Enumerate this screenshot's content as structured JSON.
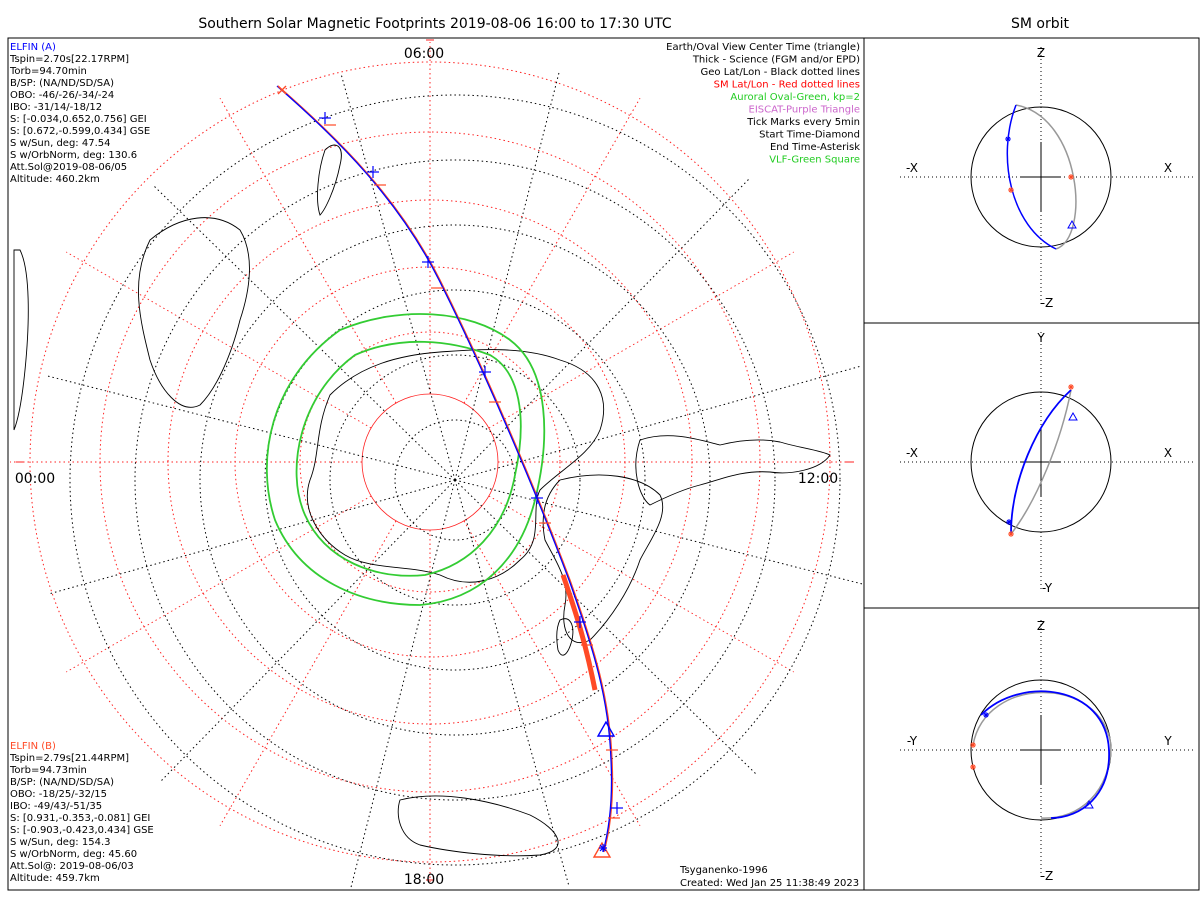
{
  "header": {
    "title": "Southern Solar Magnetic Footprints 2019-08-06 16:00 to 17:30 UTC",
    "side_title": "SM orbit"
  },
  "sat_a": {
    "name": "ELFIN (A)",
    "color": "#0000ff",
    "lines": [
      "Tspin=2.70s[22.17RPM]",
      "Torb=94.70min",
      "B/SP: (NA/ND/SD/SA)",
      "OBO: -46/-26/-34/-24",
      "IBO: -31/14/-18/12",
      "S: [-0.034,0.652,0.756] GEI",
      "S: [0.672,-0.599,0.434] GSE",
      "S w/Sun, deg: 47.54",
      "S w/OrbNorm, deg: 130.6",
      "Att.Sol@2019-08-06/05",
      "Altitude: 460.2km"
    ]
  },
  "sat_b": {
    "name": "ELFIN (B)",
    "color": "#ff4a26",
    "lines": [
      "Tspin=2.79s[21.44RPM]",
      "Torb=94.73min",
      "B/SP: (NA/ND/SD/SA)",
      "OBO: -18/25/-32/15",
      "IBO: -49/43/-51/35",
      "S: [0.931,-0.353,-0.081] GEI",
      "S: [-0.903,-0.423,0.434] GSE",
      "S w/Sun, deg: 154.3",
      "S w/OrbNorm, deg: 45.60",
      "Att.Sol@: 2019-08-06/03",
      "Altitude: 459.7km"
    ]
  },
  "legend": [
    {
      "text": "Earth/Oval View Center Time (triangle)",
      "color": "#000000"
    },
    {
      "text": "Thick - Science (FGM and/or EPD)",
      "color": "#000000"
    },
    {
      "text": "Geo Lat/Lon - Black dotted lines",
      "color": "#000000"
    },
    {
      "text": "SM Lat/Lon - Red dotted lines",
      "color": "#ff0000"
    },
    {
      "text": "Auroral Oval-Green, kp=2",
      "color": "#22cc22"
    },
    {
      "text": "EISCAT-Purple Triangle",
      "color": "#cc66cc"
    },
    {
      "text": "Tick Marks every 5min",
      "color": "#000000"
    },
    {
      "text": "Start Time-Diamond",
      "color": "#000000"
    },
    {
      "text": "End Time-Asterisk",
      "color": "#000000"
    },
    {
      "text": "VLF-Green Square",
      "color": "#22cc22"
    }
  ],
  "map_labels": {
    "top": "06:00",
    "left": "00:00",
    "right": "12:00",
    "bottom": "18:00"
  },
  "footer": {
    "model": "Tsyganenko-1996",
    "created": "Created: Wed Jan 25 11:38:49 2023"
  },
  "panels": [
    {
      "top": "Z",
      "bottom": "-Z",
      "left": "-X",
      "right": "X"
    },
    {
      "top": "Y",
      "bottom": "-Y",
      "left": "-X",
      "right": "X"
    },
    {
      "top": "Z",
      "bottom": "-Z",
      "left": "-Y",
      "right": "Y"
    }
  ],
  "chart_data": {
    "type": "polar-map",
    "projection": "southern hemisphere, solar magnetic",
    "time_range": "2019-08-06 16:00 to 17:30 UTC",
    "mlt_labels": [
      "00:00",
      "06:00",
      "12:00",
      "18:00"
    ],
    "tick_interval_min": 5,
    "series": [
      {
        "name": "ELFIN (A)",
        "color": "#0000ff"
      },
      {
        "name": "ELFIN (B)",
        "color": "#ff4a26"
      }
    ]
  }
}
